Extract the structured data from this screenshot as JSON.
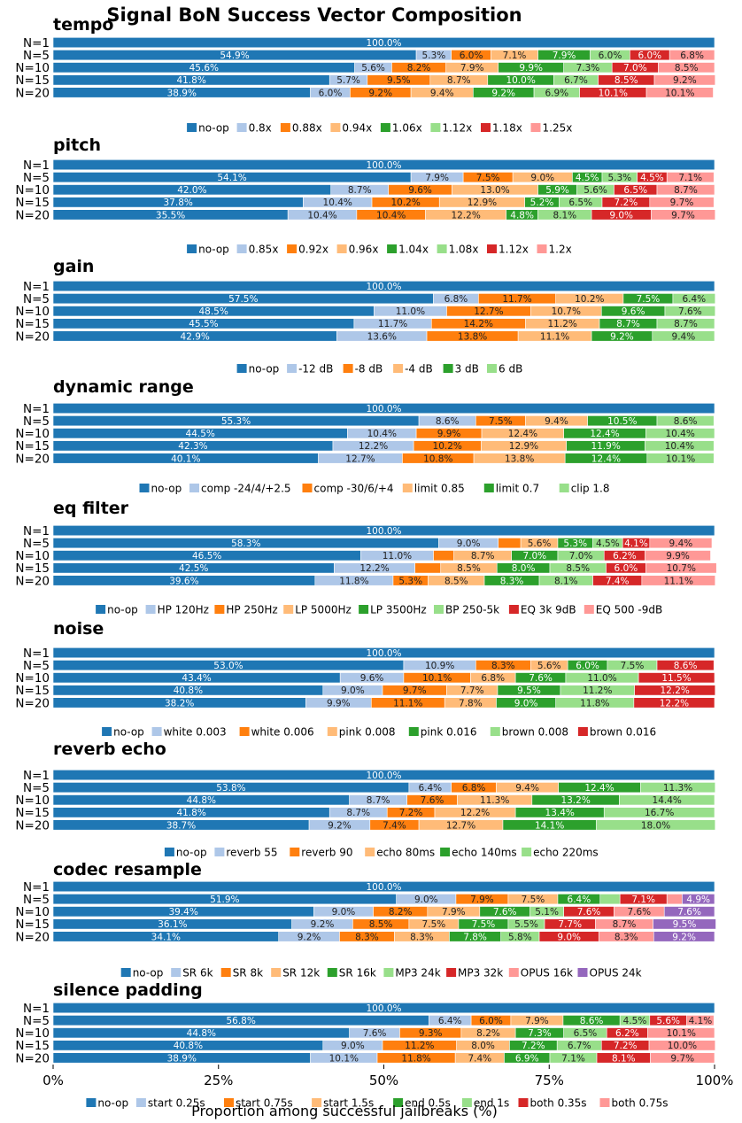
{
  "figure": {
    "title": "Signal BoN Success Vector Composition",
    "xlabel": "Proportion among successful jailbreaks (%)",
    "xticks": [
      "0%",
      "25%",
      "50%",
      "75%",
      "100%"
    ]
  },
  "colors": [
    "#1f77b4",
    "#aec7e8",
    "#ff7f0e",
    "#ffbb78",
    "#2ca02c",
    "#98df8a",
    "#d62728",
    "#ff9896",
    "#9467bd"
  ],
  "chart_data": [
    {
      "type": "bar",
      "orientation": "horizontal",
      "stacked": true,
      "title": "tempo",
      "categories": [
        "N=1",
        "N=5",
        "N=10",
        "N=15",
        "N=20"
      ],
      "xlim": [
        0,
        100
      ],
      "legend": "below",
      "series": [
        {
          "name": "no-op",
          "values": [
            100.0,
            54.9,
            45.6,
            41.8,
            38.9
          ]
        },
        {
          "name": "0.8x",
          "values": [
            0,
            5.3,
            5.6,
            5.7,
            6.0
          ]
        },
        {
          "name": "0.88x",
          "values": [
            0,
            6.0,
            8.2,
            9.5,
            9.2
          ]
        },
        {
          "name": "0.94x",
          "values": [
            0,
            7.1,
            7.9,
            8.7,
            9.4
          ]
        },
        {
          "name": "1.06x",
          "values": [
            0,
            7.9,
            9.9,
            10.0,
            9.2
          ]
        },
        {
          "name": "1.12x",
          "values": [
            0,
            6.0,
            7.3,
            6.7,
            6.9
          ]
        },
        {
          "name": "1.18x",
          "values": [
            0,
            6.0,
            7.0,
            8.5,
            10.1
          ]
        },
        {
          "name": "1.25x",
          "values": [
            0,
            6.8,
            8.5,
            9.2,
            10.1
          ]
        }
      ]
    },
    {
      "type": "bar",
      "orientation": "horizontal",
      "stacked": true,
      "title": "pitch",
      "categories": [
        "N=1",
        "N=5",
        "N=10",
        "N=15",
        "N=20"
      ],
      "xlim": [
        0,
        100
      ],
      "legend": "below",
      "series": [
        {
          "name": "no-op",
          "values": [
            100.0,
            54.1,
            42.0,
            37.8,
            35.5
          ]
        },
        {
          "name": "0.85x",
          "values": [
            0,
            7.9,
            8.7,
            10.4,
            10.4
          ]
        },
        {
          "name": "0.92x",
          "values": [
            0,
            7.5,
            9.6,
            10.2,
            10.4
          ]
        },
        {
          "name": "0.96x",
          "values": [
            0,
            9.0,
            13.0,
            12.9,
            12.2
          ]
        },
        {
          "name": "1.04x",
          "values": [
            0,
            4.5,
            5.9,
            5.2,
            4.8
          ]
        },
        {
          "name": "1.08x",
          "values": [
            0,
            5.3,
            5.6,
            6.5,
            8.1
          ]
        },
        {
          "name": "1.12x",
          "values": [
            0,
            4.5,
            6.5,
            7.2,
            9.0
          ]
        },
        {
          "name": "1.2x",
          "values": [
            0,
            7.1,
            8.7,
            9.7,
            9.7
          ]
        }
      ]
    },
    {
      "type": "bar",
      "orientation": "horizontal",
      "stacked": true,
      "title": "gain",
      "categories": [
        "N=1",
        "N=5",
        "N=10",
        "N=15",
        "N=20"
      ],
      "xlim": [
        0,
        100
      ],
      "legend": "below",
      "series": [
        {
          "name": "no-op",
          "values": [
            100.0,
            57.5,
            48.5,
            45.5,
            42.9
          ]
        },
        {
          "name": "-12 dB",
          "values": [
            0,
            6.8,
            11.0,
            11.7,
            13.6
          ]
        },
        {
          "name": "-8 dB",
          "values": [
            0,
            11.7,
            12.7,
            14.2,
            13.8
          ]
        },
        {
          "name": "-4 dB",
          "values": [
            0,
            10.2,
            10.7,
            11.2,
            11.1
          ]
        },
        {
          "name": "3 dB",
          "values": [
            0,
            7.5,
            9.6,
            8.7,
            9.2
          ]
        },
        {
          "name": "6 dB",
          "values": [
            0,
            6.4,
            7.6,
            8.7,
            9.4
          ]
        }
      ]
    },
    {
      "type": "bar",
      "orientation": "horizontal",
      "stacked": true,
      "title": "dynamic range",
      "categories": [
        "N=1",
        "N=5",
        "N=10",
        "N=15",
        "N=20"
      ],
      "xlim": [
        0,
        100
      ],
      "legend": "below",
      "series": [
        {
          "name": "no-op",
          "values": [
            100.0,
            55.3,
            44.5,
            42.3,
            40.1
          ]
        },
        {
          "name": "comp -24/4/+2.5",
          "values": [
            0,
            8.6,
            10.4,
            12.2,
            12.7
          ]
        },
        {
          "name": "comp -30/6/+4",
          "values": [
            0,
            7.5,
            9.9,
            10.2,
            10.8
          ]
        },
        {
          "name": "limit 0.85",
          "values": [
            0,
            9.4,
            12.4,
            12.9,
            13.8
          ]
        },
        {
          "name": "limit 0.7",
          "values": [
            0,
            10.5,
            12.4,
            11.9,
            12.4
          ]
        },
        {
          "name": "clip 1.8",
          "values": [
            0,
            8.6,
            10.4,
            10.4,
            10.1
          ]
        }
      ]
    },
    {
      "type": "bar",
      "orientation": "horizontal",
      "stacked": true,
      "title": "eq filter",
      "categories": [
        "N=1",
        "N=5",
        "N=10",
        "N=15",
        "N=20"
      ],
      "xlim": [
        0,
        100
      ],
      "legend": "below",
      "series": [
        {
          "name": "no-op",
          "values": [
            100.0,
            58.3,
            46.5,
            42.5,
            39.6
          ]
        },
        {
          "name": "HP 120Hz",
          "values": [
            0,
            9.0,
            11.0,
            12.2,
            11.8
          ]
        },
        {
          "name": "HP 250Hz",
          "values": [
            0,
            3.4,
            3.1,
            3.9,
            5.3
          ]
        },
        {
          "name": "LP 5000Hz",
          "values": [
            0,
            5.6,
            8.7,
            8.5,
            8.5
          ]
        },
        {
          "name": "LP 3500Hz",
          "values": [
            0,
            5.3,
            7.0,
            8.0,
            8.3
          ]
        },
        {
          "name": "BP 250-5k",
          "values": [
            0,
            4.5,
            7.0,
            8.5,
            8.1
          ]
        },
        {
          "name": "EQ 3k 9dB",
          "values": [
            0,
            4.1,
            6.2,
            6.0,
            7.4
          ]
        },
        {
          "name": "EQ 500 -9dB",
          "values": [
            0,
            9.4,
            9.9,
            10.7,
            11.1
          ]
        }
      ]
    },
    {
      "type": "bar",
      "orientation": "horizontal",
      "stacked": true,
      "title": "noise",
      "categories": [
        "N=1",
        "N=5",
        "N=10",
        "N=15",
        "N=20"
      ],
      "xlim": [
        0,
        100
      ],
      "legend": "below",
      "series": [
        {
          "name": "no-op",
          "values": [
            100.0,
            53.0,
            43.4,
            40.8,
            38.2
          ]
        },
        {
          "name": "white 0.003",
          "values": [
            0,
            10.9,
            9.6,
            9.0,
            9.9
          ]
        },
        {
          "name": "white 0.006",
          "values": [
            0,
            8.3,
            10.1,
            9.7,
            11.1
          ]
        },
        {
          "name": "pink 0.008",
          "values": [
            0,
            5.6,
            6.8,
            7.7,
            7.8
          ]
        },
        {
          "name": "pink 0.016",
          "values": [
            0,
            6.0,
            7.6,
            9.5,
            9.0
          ]
        },
        {
          "name": "brown 0.008",
          "values": [
            0,
            7.5,
            11.0,
            11.2,
            11.8
          ]
        },
        {
          "name": "brown 0.016",
          "values": [
            0,
            8.6,
            11.5,
            12.2,
            12.2
          ]
        }
      ]
    },
    {
      "type": "bar",
      "orientation": "horizontal",
      "stacked": true,
      "title": "reverb echo",
      "categories": [
        "N=1",
        "N=5",
        "N=10",
        "N=15",
        "N=20"
      ],
      "xlim": [
        0,
        100
      ],
      "legend": "below",
      "series": [
        {
          "name": "no-op",
          "values": [
            100.0,
            53.8,
            44.8,
            41.8,
            38.7
          ]
        },
        {
          "name": "reverb 55",
          "values": [
            0,
            6.4,
            8.7,
            8.7,
            9.2
          ]
        },
        {
          "name": "reverb 90",
          "values": [
            0,
            6.8,
            7.6,
            7.2,
            7.4
          ]
        },
        {
          "name": "echo 80ms",
          "values": [
            0,
            9.4,
            11.3,
            12.2,
            12.7
          ]
        },
        {
          "name": "echo 140ms",
          "values": [
            0,
            12.4,
            13.2,
            13.4,
            14.1
          ]
        },
        {
          "name": "echo 220ms",
          "values": [
            0,
            11.3,
            14.4,
            16.7,
            18.0
          ]
        }
      ]
    },
    {
      "type": "bar",
      "orientation": "horizontal",
      "stacked": true,
      "title": "codec resample",
      "categories": [
        "N=1",
        "N=5",
        "N=10",
        "N=15",
        "N=20"
      ],
      "xlim": [
        0,
        100
      ],
      "legend": "below",
      "series": [
        {
          "name": "no-op",
          "values": [
            100.0,
            51.9,
            39.4,
            36.1,
            34.1
          ]
        },
        {
          "name": "SR 6k",
          "values": [
            0,
            9.0,
            9.0,
            9.2,
            9.2
          ]
        },
        {
          "name": "SR 8k",
          "values": [
            0,
            7.9,
            8.2,
            8.5,
            8.3
          ]
        },
        {
          "name": "SR 12k",
          "values": [
            0,
            7.5,
            7.9,
            7.5,
            8.3
          ]
        },
        {
          "name": "SR 16k",
          "values": [
            0,
            6.4,
            7.6,
            7.5,
            7.8
          ]
        },
        {
          "name": "MP3 24k",
          "values": [
            0,
            3.0,
            5.1,
            5.5,
            5.8
          ]
        },
        {
          "name": "MP3 32k",
          "values": [
            0,
            7.1,
            7.6,
            7.7,
            9.0
          ]
        },
        {
          "name": "OPUS 16k",
          "values": [
            0,
            2.3,
            7.6,
            8.7,
            8.3
          ]
        },
        {
          "name": "OPUS 24k",
          "values": [
            0,
            4.9,
            7.6,
            9.5,
            9.2
          ]
        }
      ]
    },
    {
      "type": "bar",
      "orientation": "horizontal",
      "stacked": true,
      "title": "silence padding",
      "categories": [
        "N=1",
        "N=5",
        "N=10",
        "N=15",
        "N=20"
      ],
      "xlim": [
        0,
        100
      ],
      "legend": "below",
      "series": [
        {
          "name": "no-op",
          "values": [
            100.0,
            56.8,
            44.8,
            40.8,
            38.9
          ]
        },
        {
          "name": "start 0.25s",
          "values": [
            0,
            6.4,
            7.6,
            9.0,
            10.1
          ]
        },
        {
          "name": "start 0.75s",
          "values": [
            0,
            6.0,
            9.3,
            11.2,
            11.8
          ]
        },
        {
          "name": "start 1.5s",
          "values": [
            0,
            7.9,
            8.2,
            8.0,
            7.4
          ]
        },
        {
          "name": "end 0.5s",
          "values": [
            0,
            8.6,
            7.3,
            7.2,
            6.9
          ]
        },
        {
          "name": "end 1s",
          "values": [
            0,
            4.5,
            6.5,
            6.7,
            7.1
          ]
        },
        {
          "name": "both 0.35s",
          "values": [
            0,
            5.6,
            6.2,
            7.2,
            8.1
          ]
        },
        {
          "name": "both 0.75s",
          "values": [
            0,
            4.1,
            10.1,
            10.0,
            9.7
          ]
        }
      ]
    }
  ]
}
